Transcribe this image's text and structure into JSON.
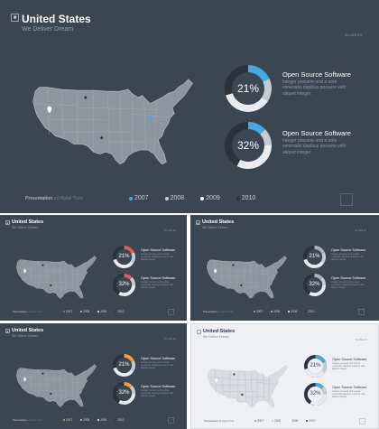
{
  "slide": {
    "title": "United States",
    "subtitle": "We Deliver Dream",
    "tag": "SLIDE30",
    "presentation": {
      "bold": "Presentation",
      "rest": " all digital Tools"
    },
    "cards": [
      {
        "value": "21%",
        "heading": "Open Source Software",
        "body": "Integer posuere erat a ante venenatis dapibus posuere velit aliquet integer."
      },
      {
        "value": "32%",
        "heading": "Open Source Software",
        "body": "Integer posuere erat a ante venenatis dapibus posuere velit aliquet integer."
      }
    ],
    "legend": [
      {
        "label": "2007",
        "color": "#4aa8e0"
      },
      {
        "label": "2008",
        "color": "#c4ccd4"
      },
      {
        "label": "2009",
        "color": "#ffffff"
      },
      {
        "label": "2010",
        "color": "#2a323b"
      }
    ]
  },
  "variants": [
    {
      "theme": "dark",
      "accent": "#e05a5a"
    },
    {
      "theme": "dark",
      "accent": "#a7b4c2"
    },
    {
      "theme": "dark",
      "accent": "#f0a23a"
    },
    {
      "theme": "light",
      "accent": "#4aa8e0"
    }
  ],
  "main_accent": "#4aa8e0",
  "icons": {
    "header": "map-square-icon",
    "pin": "location-pin-icon"
  }
}
